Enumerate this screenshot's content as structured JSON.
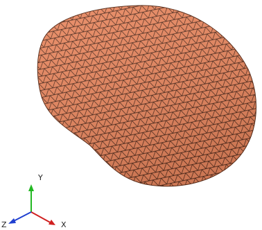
{
  "axes": {
    "y": "Y",
    "x": "X",
    "z": "Z"
  }
}
